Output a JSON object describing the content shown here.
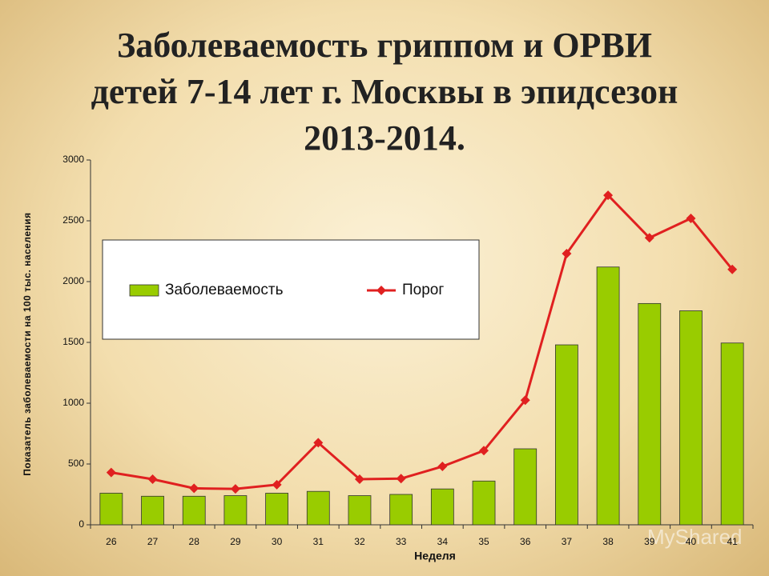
{
  "chart_data": {
    "type": "bar-line",
    "title": "Заболеваемость гриппом и ОРВИ детей 7-14 лет г. Москвы в эпидсезон 2013-2014.",
    "y_label": "Показатель заболеваемости на 100 тыс. населения",
    "x_label": "Неделя",
    "watermark": "MyShared",
    "categories": [
      "26",
      "27",
      "28",
      "29",
      "30",
      "31",
      "32",
      "33",
      "34",
      "35",
      "36",
      "37",
      "38",
      "39",
      "40",
      "41"
    ],
    "series": [
      {
        "name": "Заболеваемость",
        "type": "bar",
        "color": "#99cc00",
        "values": [
          260,
          235,
          235,
          240,
          260,
          275,
          240,
          250,
          295,
          360,
          625,
          1480,
          2120,
          1820,
          1760,
          1495
        ]
      },
      {
        "name": "Порог",
        "type": "line",
        "color": "#e02020",
        "values": [
          430,
          375,
          300,
          295,
          330,
          675,
          375,
          380,
          480,
          610,
          1025,
          2230,
          2710,
          2360,
          2520,
          2100
        ]
      }
    ],
    "ylim": [
      0,
      3000
    ],
    "yticks": [
      0,
      500,
      1000,
      1500,
      2000,
      2500,
      3000
    ],
    "grid": false
  }
}
